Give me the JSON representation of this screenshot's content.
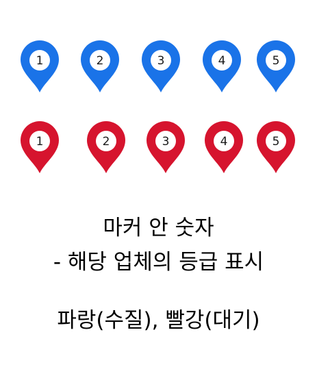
{
  "colors": {
    "blue": "#1a73e8",
    "red": "#d6142e"
  },
  "markers": {
    "blue": [
      {
        "label": "1",
        "icon": "blue-map-pin-icon"
      },
      {
        "label": "2",
        "icon": "blue-map-pin-icon"
      },
      {
        "label": "3",
        "icon": "blue-map-pin-icon"
      },
      {
        "label": "4",
        "icon": "blue-map-pin-icon"
      },
      {
        "label": "5",
        "icon": "blue-map-pin-icon"
      }
    ],
    "red": [
      {
        "label": "1",
        "icon": "red-map-pin-icon"
      },
      {
        "label": "2",
        "icon": "red-map-pin-icon"
      },
      {
        "label": "3",
        "icon": "red-map-pin-icon"
      },
      {
        "label": "4",
        "icon": "red-map-pin-icon"
      },
      {
        "label": "5",
        "icon": "red-map-pin-icon"
      }
    ]
  },
  "caption": {
    "line1": "마커 안 숫자",
    "line2": "- 해당 업체의 등급 표시",
    "line3": "파랑(수질), 빨강(대기)"
  }
}
